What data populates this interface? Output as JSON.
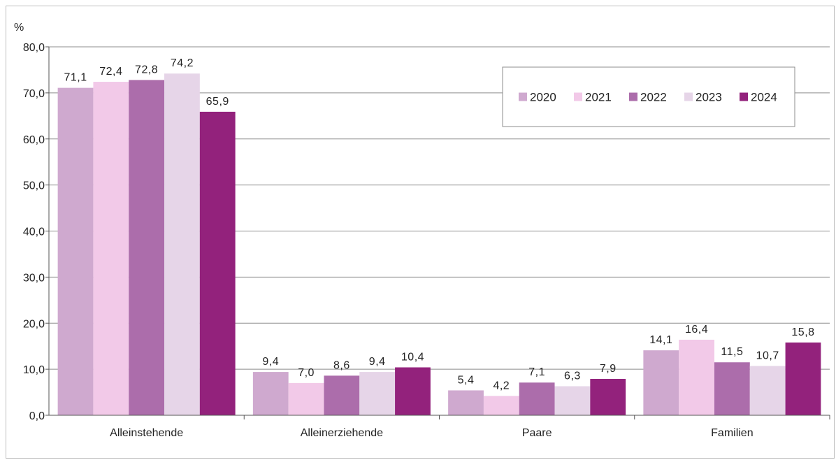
{
  "chart_data": {
    "type": "bar",
    "ylabel": "%",
    "ylim": [
      0,
      80
    ],
    "yticks": [
      "0,0",
      "10,0",
      "20,0",
      "30,0",
      "40,0",
      "50,0",
      "60,0",
      "70,0",
      "80,0"
    ],
    "grid": true,
    "legend_position": "top-right",
    "categories": [
      "Alleinstehende",
      "Alleinerziehende",
      "Paare",
      "Familien"
    ],
    "series": [
      {
        "name": "2020",
        "color": "#cfa9cf",
        "values": [
          71.1,
          9.4,
          5.4,
          14.1
        ],
        "labels": [
          "71,1",
          "9,4",
          "5,4",
          "14,1"
        ]
      },
      {
        "name": "2021",
        "color": "#f2c9e8",
        "values": [
          72.4,
          7.0,
          4.2,
          16.4
        ],
        "labels": [
          "72,4",
          "7,0",
          "4,2",
          "16,4"
        ]
      },
      {
        "name": "2022",
        "color": "#ac6dab",
        "values": [
          72.8,
          8.6,
          7.1,
          11.5
        ],
        "labels": [
          "72,8",
          "8,6",
          "7,1",
          "11,5"
        ]
      },
      {
        "name": "2023",
        "color": "#e6d5e8",
        "values": [
          74.2,
          9.4,
          6.3,
          10.7
        ],
        "labels": [
          "74,2",
          "9,4",
          "6,3",
          "10,7"
        ]
      },
      {
        "name": "2024",
        "color": "#93227c",
        "values": [
          65.9,
          10.4,
          7.9,
          15.8
        ],
        "labels": [
          "65,9",
          "10,4",
          "7,9",
          "15,8"
        ]
      }
    ]
  }
}
